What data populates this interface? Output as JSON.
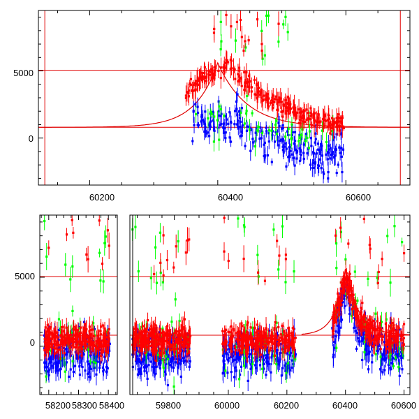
{
  "chart_data": [
    {
      "type": "scatter",
      "title": "",
      "xlabel": "",
      "ylabel": "",
      "xlim": [
        60120,
        60700
      ],
      "ylim": [
        -3500,
        9500
      ],
      "grid": false,
      "x_ticks": [
        60200,
        60400,
        60600
      ],
      "x_tick_labels": [
        "60200",
        "60400",
        "60600"
      ],
      "y_ticks": [
        0,
        5000
      ],
      "y_tick_labels": [
        "0",
        "5000"
      ],
      "vertical_lines": [
        60130,
        60685
      ],
      "horizontal_lines": [
        5050,
        800
      ],
      "colors": {
        "red": "#ff0000",
        "blue": "#0000ff",
        "green": "#00ff00",
        "model": "#e00000"
      },
      "model_curve": {
        "baseline": 800,
        "peak_x": 60400,
        "peak_y": 5600,
        "rise_tau_days": 35,
        "decay_tau_days": 45
      },
      "series": [
        {
          "color": "red",
          "x": [
            60350,
            60360,
            60370,
            60380,
            60390,
            60400,
            60410,
            60420,
            60430,
            60440,
            60450,
            60460,
            60470,
            60480,
            60490,
            60500,
            60510,
            60520,
            60530,
            60540,
            60550,
            60560,
            60570,
            60580,
            60590,
            60600
          ],
          "y": [
            3200,
            3800,
            4200,
            4500,
            4800,
            5000,
            5200,
            5500,
            4800,
            4300,
            4000,
            3600,
            3200,
            2900,
            2600,
            2400,
            2200,
            2000,
            1800,
            1600,
            1500,
            1300,
            1200,
            1100,
            1000,
            1400
          ]
        },
        {
          "color": "blue",
          "x": [
            60360,
            60370,
            60380,
            60390,
            60400,
            60410,
            60420,
            60430,
            60440,
            60450,
            60460,
            60470,
            60480,
            60490,
            60500,
            60510,
            60520,
            60530,
            60540,
            60550,
            60560,
            60570,
            60580,
            60590,
            60600
          ],
          "y": [
            1000,
            1500,
            1200,
            800,
            1300,
            600,
            900,
            1400,
            700,
            300,
            500,
            -200,
            200,
            -400,
            0,
            -600,
            -300,
            -900,
            -500,
            -1200,
            -800,
            -1500,
            -1000,
            -1300,
            -1100
          ]
        },
        {
          "color": "green",
          "x": [
            60365,
            60380,
            60400,
            60420,
            60440,
            60460,
            60480,
            60500,
            60520,
            60540,
            60560,
            60580
          ],
          "y": [
            3500,
            2000,
            1500,
            2500,
            1800,
            900,
            500,
            1200,
            300,
            -500,
            -200,
            600
          ]
        }
      ]
    },
    {
      "type": "scatter",
      "title": "",
      "xlabel": "",
      "ylabel": "",
      "ylim": [
        -3500,
        9500
      ],
      "grid": false,
      "y_ticks": [
        0,
        5000
      ],
      "y_tick_labels": [
        "0",
        "5000"
      ],
      "horizontal_lines": [
        5050,
        800
      ],
      "colors": {
        "red": "#ff0000",
        "blue": "#0000ff",
        "green": "#00ff00",
        "model": "#e00000"
      },
      "model_curve": {
        "baseline": 800,
        "peak_x": 60400,
        "peak_y": 5600,
        "rise_tau_days": 35,
        "decay_tau_days": 45
      },
      "x_segments": [
        {
          "range": [
            58170,
            58430
          ],
          "ticks": [
            58200,
            58300,
            58400
          ],
          "tick_labels": [
            "58200",
            "58300",
            "58400"
          ],
          "obs_range": [
            58185,
            58405
          ]
        },
        {
          "range": [
            59620,
            59900
          ],
          "ticks": [
            59800
          ],
          "tick_labels": [
            "59800"
          ],
          "obs_range": [
            59630,
            59865
          ]
        },
        {
          "range": [
            59900,
            60620
          ],
          "ticks": [
            60000,
            60200,
            60400,
            60600
          ],
          "tick_labels": [
            "60000",
            "60200",
            "60400",
            "60600"
          ],
          "obs_ranges": [
            [
              59980,
              60230
            ],
            [
              60355,
              60600
            ]
          ]
        }
      ]
    }
  ]
}
